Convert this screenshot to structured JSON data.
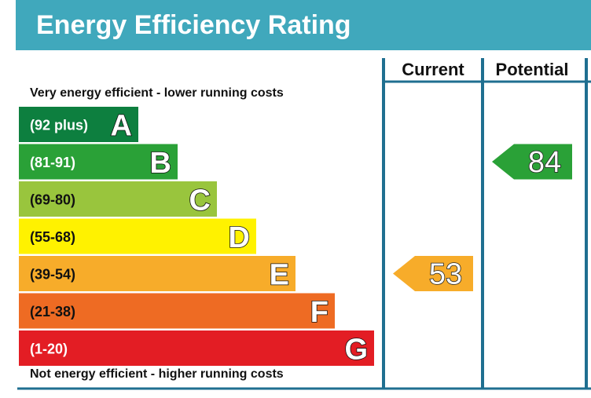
{
  "header": {
    "title": "Energy Efficiency Rating"
  },
  "captions": {
    "top": "Very energy efficient - lower running costs",
    "bottom": "Not energy efficient - higher running costs"
  },
  "colors": {
    "header_bg": "#40a8bc",
    "frame": "#1f6f90"
  },
  "chart_data": {
    "type": "bar",
    "columns": [
      "Current",
      "Potential"
    ],
    "bands": [
      {
        "letter": "A",
        "range": "(92 plus)",
        "color": "#0d7f3f",
        "text": "light"
      },
      {
        "letter": "B",
        "range": "(81-91)",
        "color": "#2aa137",
        "text": "light"
      },
      {
        "letter": "C",
        "range": "(69-80)",
        "color": "#99c53d",
        "text": "dark"
      },
      {
        "letter": "D",
        "range": "(55-68)",
        "color": "#fff200",
        "text": "dark"
      },
      {
        "letter": "E",
        "range": "(39-54)",
        "color": "#f7ac2a",
        "text": "dark"
      },
      {
        "letter": "F",
        "range": "(21-38)",
        "color": "#ee6b23",
        "text": "dark"
      },
      {
        "letter": "G",
        "range": "(1-20)",
        "color": "#e31d24",
        "text": "light"
      }
    ],
    "ratings": [
      {
        "column": "Current",
        "value": 53,
        "band": "E",
        "color": "#f7ac2a"
      },
      {
        "column": "Potential",
        "value": 84,
        "band": "B",
        "color": "#2aa137"
      }
    ]
  }
}
